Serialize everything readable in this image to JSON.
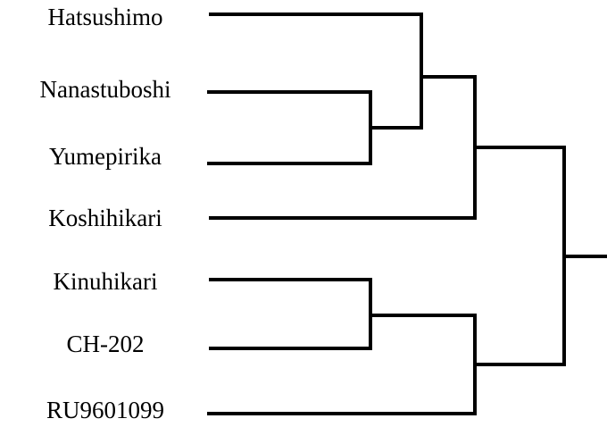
{
  "leaves": [
    "Hatsushimo",
    "Nanastuboshi",
    "Yumepirika",
    "Koshihikari",
    "Kinuhikari",
    "CH-202",
    "RU9601099"
  ]
}
